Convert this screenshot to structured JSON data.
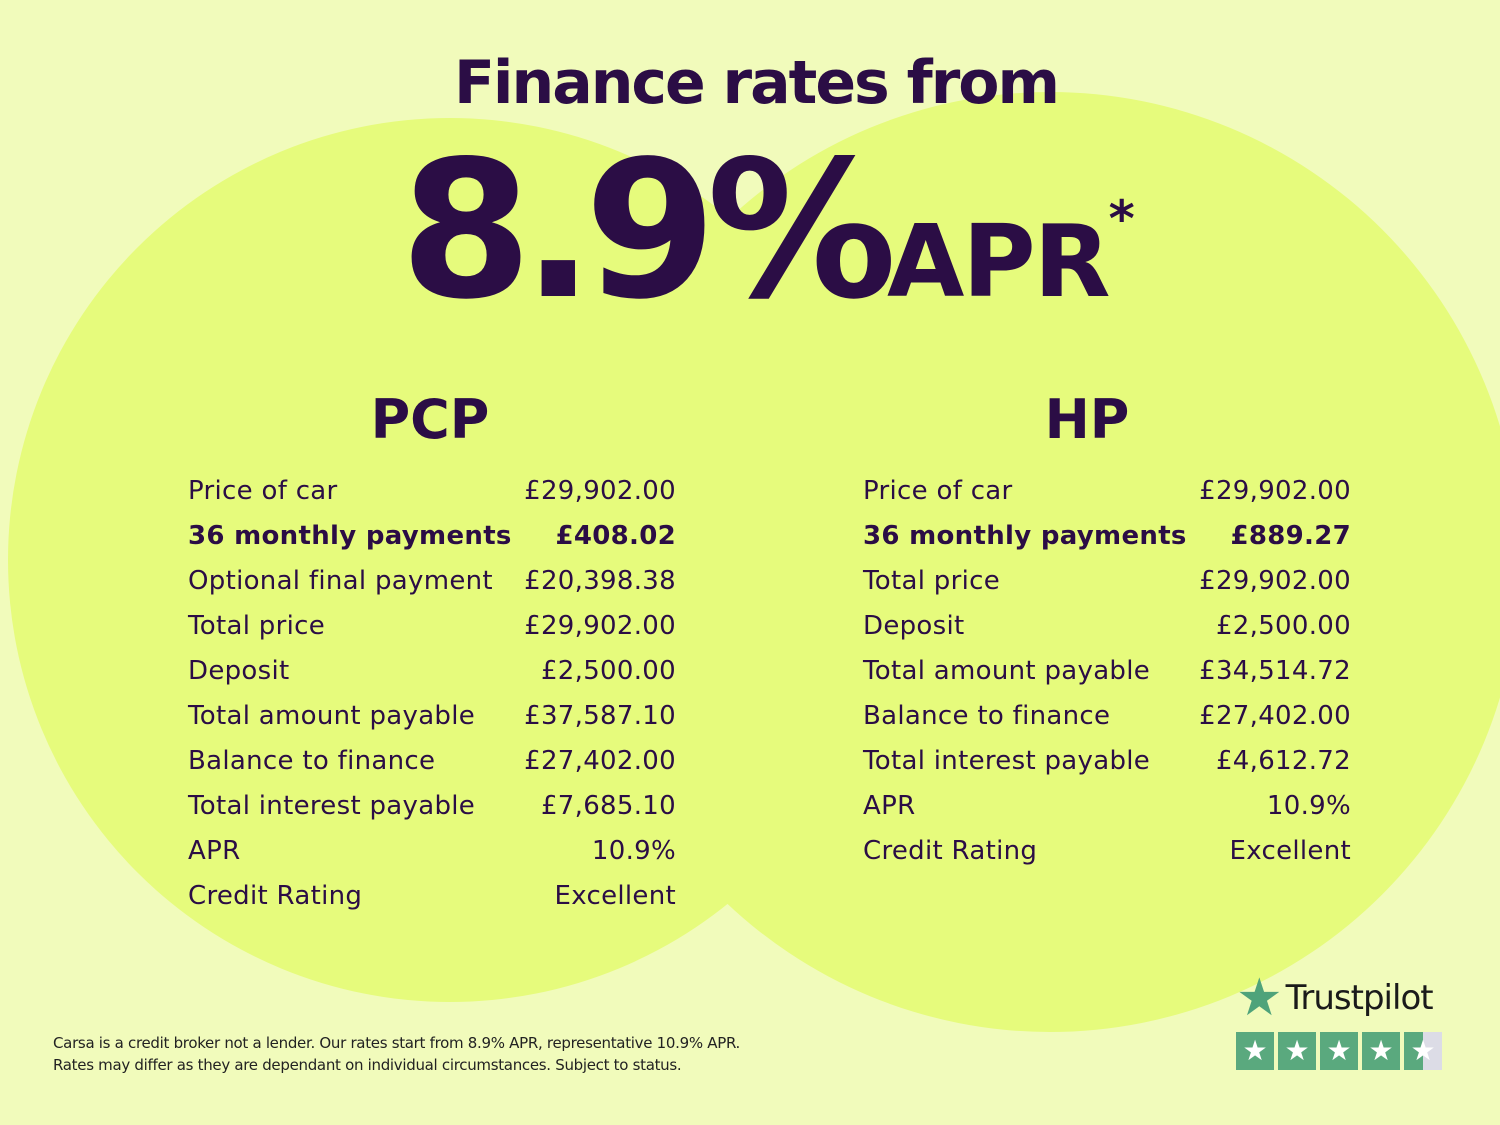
{
  "headline": {
    "title": "Finance rates from",
    "rate": "8.9%",
    "apr": "APR",
    "asterisk": "*"
  },
  "pcp": {
    "heading": "PCP",
    "rows": [
      {
        "label": "Price of car",
        "value": "£29,902.00"
      },
      {
        "label": "36 monthly payments",
        "value": "£408.02",
        "bold": true
      },
      {
        "label": "Optional final payment",
        "value": "£20,398.38"
      },
      {
        "label": "Total price",
        "value": "£29,902.00"
      },
      {
        "label": "Deposit",
        "value": "£2,500.00"
      },
      {
        "label": "Total amount payable",
        "value": "£37,587.10"
      },
      {
        "label": "Balance to finance",
        "value": "£27,402.00"
      },
      {
        "label": "Total interest payable",
        "value": "£7,685.10"
      },
      {
        "label": "APR",
        "value": "10.9%"
      },
      {
        "label": "Credit Rating",
        "value": "Excellent"
      }
    ]
  },
  "hp": {
    "heading": "HP",
    "rows": [
      {
        "label": "Price of car",
        "value": "£29,902.00"
      },
      {
        "label": "36 monthly payments",
        "value": "£889.27",
        "bold": true
      },
      {
        "label": "Total price",
        "value": "£29,902.00"
      },
      {
        "label": "Deposit",
        "value": "£2,500.00"
      },
      {
        "label": "Total amount payable",
        "value": "£34,514.72"
      },
      {
        "label": "Balance to finance",
        "value": "£27,402.00"
      },
      {
        "label": "Total interest payable",
        "value": "£4,612.72"
      },
      {
        "label": "APR",
        "value": "10.9%"
      },
      {
        "label": "Credit Rating",
        "value": "Excellent"
      }
    ]
  },
  "disclaimer": {
    "line1": "Carsa is a credit broker not a lender. Our rates start from 8.9% APR, representative 10.9% APR.",
    "line2": "Rates may differ as they are dependant on individual circumstances. Subject to status."
  },
  "trustpilot": {
    "name": "Trustpilot",
    "rating_stars": 4.5,
    "max_stars": 5,
    "icon": "star-icon"
  },
  "colors": {
    "background": "#f1fbbb",
    "circle": "#e6fb7c",
    "text": "#2b0d45",
    "trustpilot_green": "#5aa97e"
  }
}
